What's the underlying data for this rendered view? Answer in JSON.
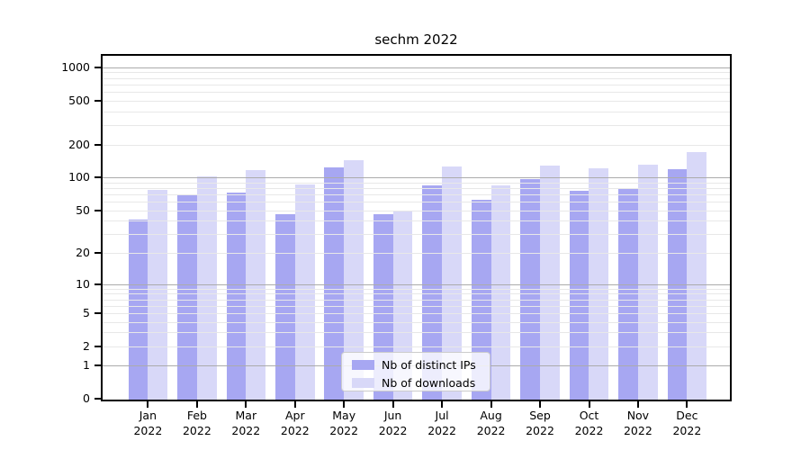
{
  "title": "sechm 2022",
  "legend": {
    "items": [
      {
        "label": "Nb of distinct IPs",
        "color": "#a7a7f2"
      },
      {
        "label": "Nb of downloads",
        "color": "#d8d8f8"
      }
    ]
  },
  "chart_data": {
    "type": "bar",
    "title": "sechm 2022",
    "categories": [
      "Jan 2022",
      "Feb 2022",
      "Mar 2022",
      "Apr 2022",
      "May 2022",
      "Jun 2022",
      "Jul 2022",
      "Aug 2022",
      "Sep 2022",
      "Oct 2022",
      "Nov 2022",
      "Dec 2022"
    ],
    "series": [
      {
        "name": "Nb of distinct IPs",
        "color": "#a7a7f2",
        "values": [
          41,
          68,
          73,
          46,
          123,
          46,
          84,
          62,
          96,
          76,
          78,
          119
        ]
      },
      {
        "name": "Nb of downloads",
        "color": "#d8d8f8",
        "values": [
          77,
          102,
          116,
          86,
          144,
          50,
          126,
          85,
          129,
          121,
          131,
          170
        ]
      }
    ],
    "xlabel": "",
    "ylabel": "",
    "yscale": "log1p",
    "y_ticks": [
      1000,
      500,
      200,
      100,
      50,
      20,
      10,
      5,
      2,
      1,
      0
    ],
    "ylim": [
      0,
      1270
    ],
    "grid": true,
    "grid_over_bars": true,
    "legend_position": "lower center",
    "major_grid_values": [
      1,
      10,
      100,
      1000
    ]
  }
}
